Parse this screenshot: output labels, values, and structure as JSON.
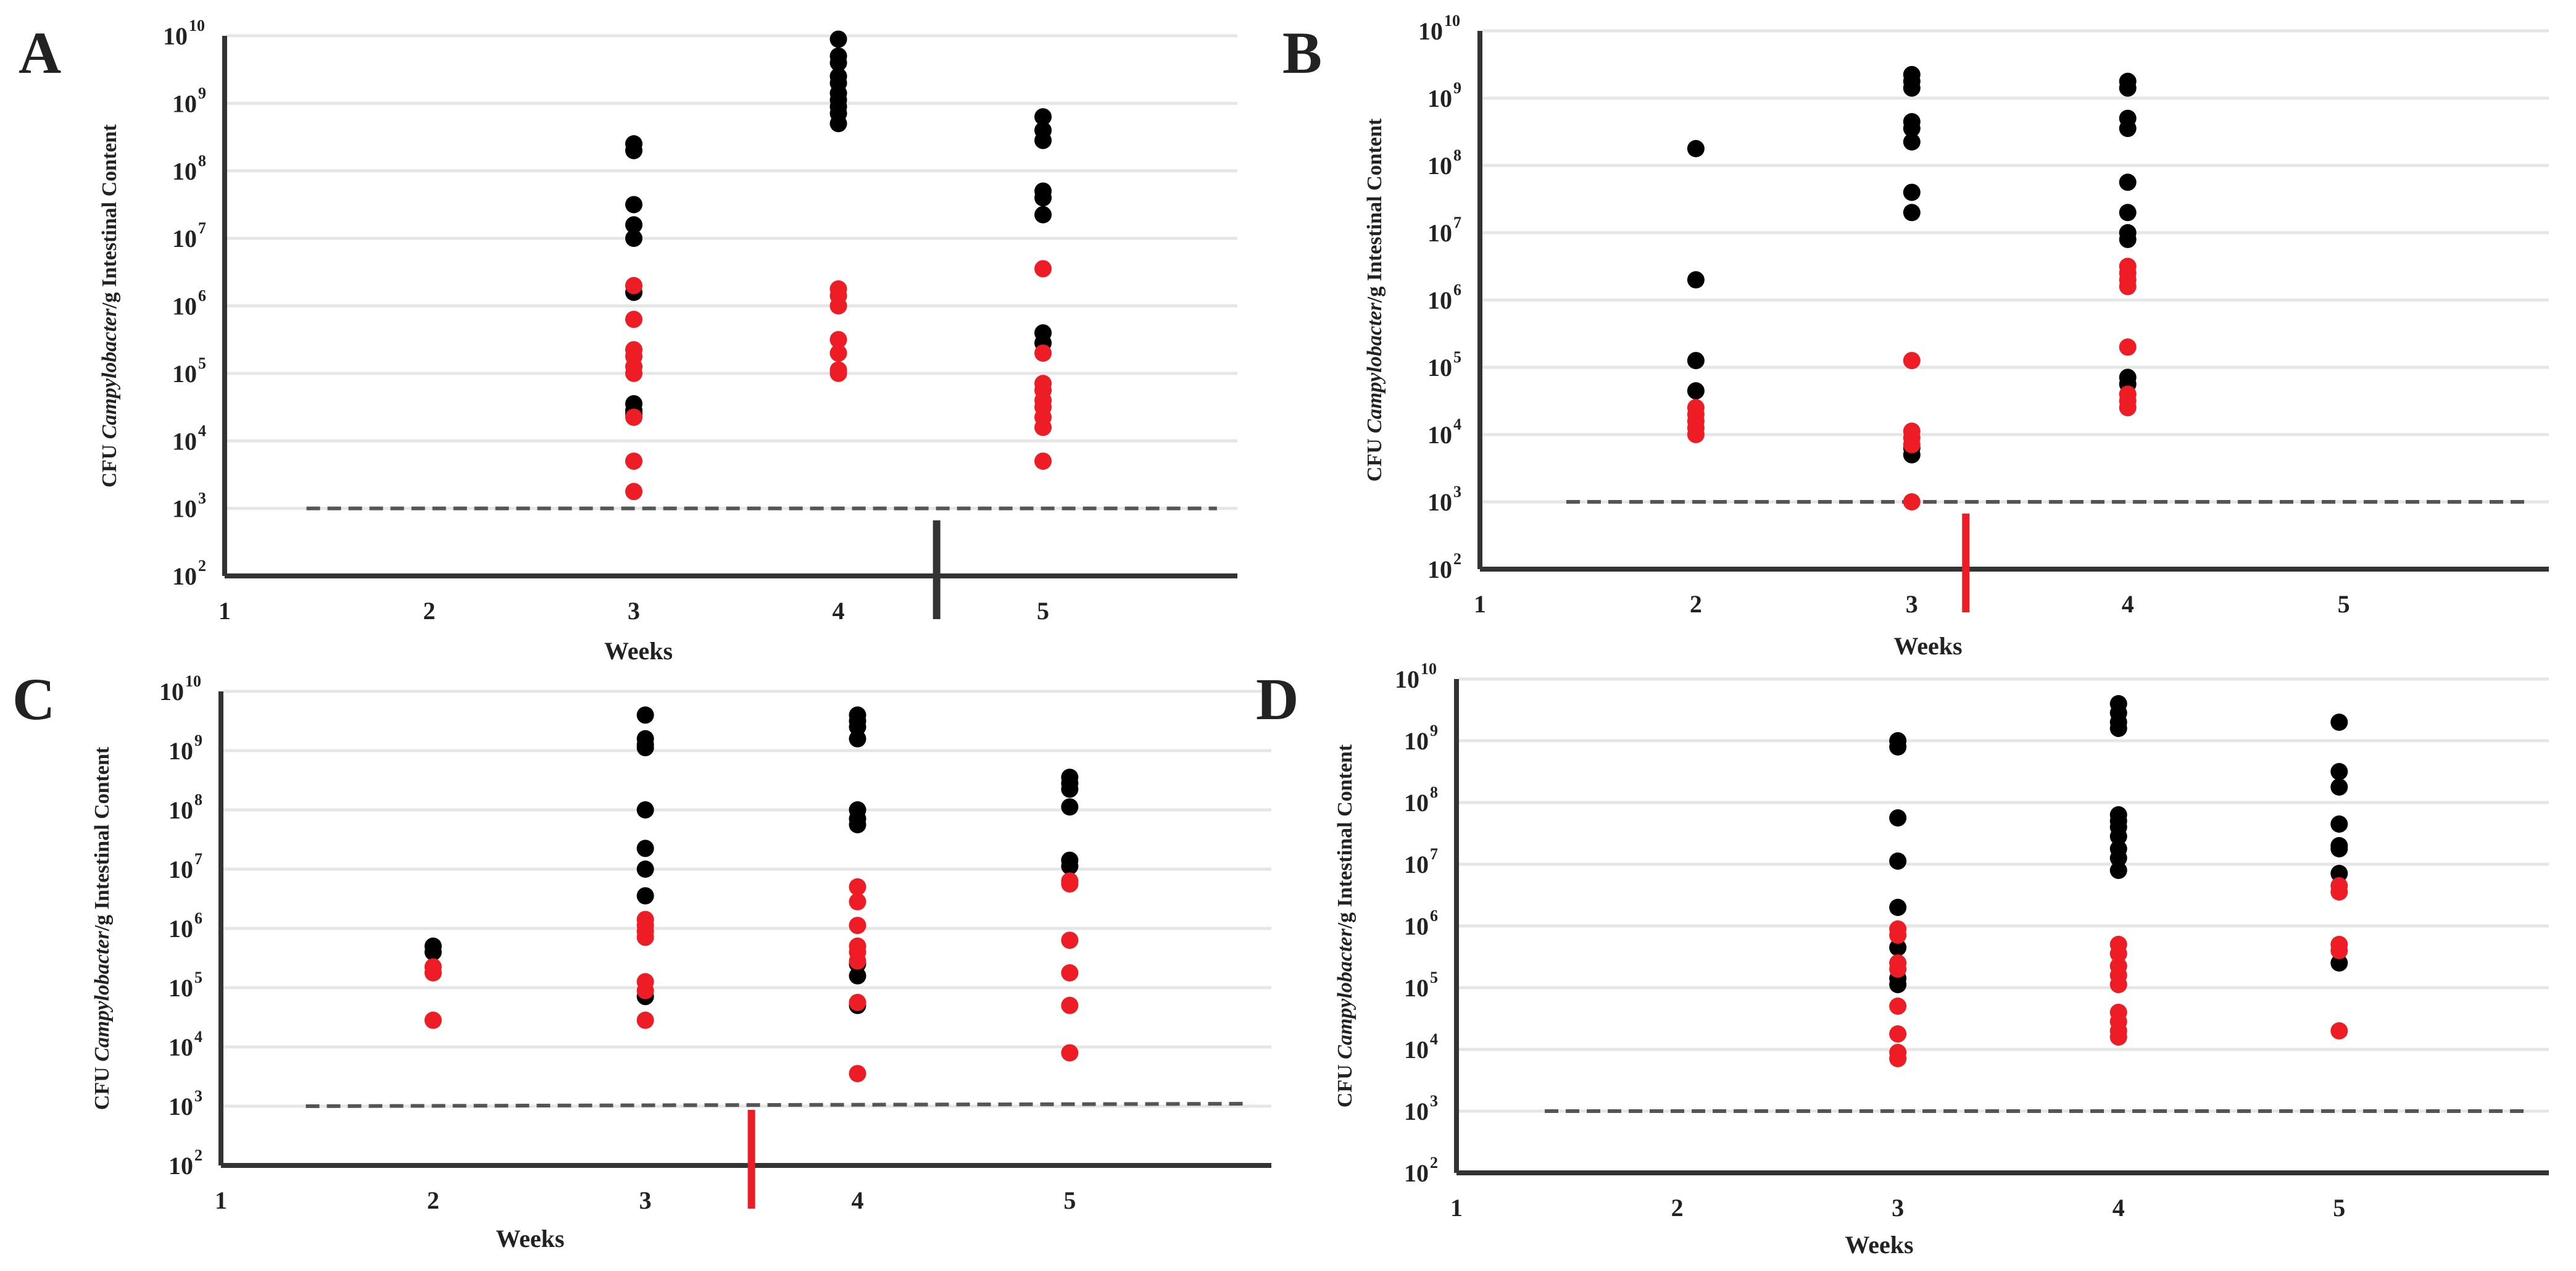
{
  "figure": {
    "panel_letters": [
      "A",
      "B",
      "C",
      "D"
    ]
  },
  "colors": {
    "black_group": "#000000",
    "red_group": "#ee1c25",
    "grid": "#e6e6e6",
    "axis": "#333333",
    "detection_limit": "#555555",
    "marker_black": "#333333",
    "marker_red": "#ee1c25"
  },
  "chart_data": [
    {
      "panel": "A",
      "type": "scatter",
      "xlabel": "Weeks",
      "ylabel": [
        "CFU ",
        "Campylobacter",
        "/g Intestinal Content"
      ],
      "x_ticks": [
        "1",
        "2",
        "3",
        "4",
        "5"
      ],
      "xlim": [
        1,
        5.95
      ],
      "y_ticks": [
        2,
        3,
        4,
        5,
        6,
        7,
        8,
        9,
        10
      ],
      "y_tick_base": "10",
      "ylim_log10": [
        2,
        10
      ],
      "y_scale": "log",
      "detection_limit_log10": 3,
      "marker": {
        "x": 4.48,
        "color": "black"
      },
      "series": [
        {
          "name": "black",
          "color": "#000000",
          "points": [
            [
              3,
              8.4
            ],
            [
              3,
              8.3
            ],
            [
              3,
              7.5
            ],
            [
              3,
              7.2
            ],
            [
              3,
              7.0
            ],
            [
              3,
              6.2
            ],
            [
              3,
              4.55
            ],
            [
              3,
              4.45
            ],
            [
              3,
              4.4
            ],
            [
              4,
              9.95
            ],
            [
              4,
              9.7
            ],
            [
              4,
              9.6
            ],
            [
              4,
              9.4
            ],
            [
              4,
              9.3
            ],
            [
              4,
              9.15
            ],
            [
              4,
              9.05
            ],
            [
              4,
              8.95
            ],
            [
              4,
              8.85
            ],
            [
              4,
              8.7
            ],
            [
              5,
              8.8
            ],
            [
              5,
              8.6
            ],
            [
              5,
              8.45
            ],
            [
              5,
              7.7
            ],
            [
              5,
              7.6
            ],
            [
              5,
              7.35
            ],
            [
              5,
              5.6
            ],
            [
              5,
              5.45
            ]
          ]
        },
        {
          "name": "red",
          "color": "#ee1c25",
          "points": [
            [
              3,
              6.3
            ],
            [
              3,
              5.8
            ],
            [
              3,
              5.35
            ],
            [
              3,
              5.25
            ],
            [
              3,
              5.1
            ],
            [
              3,
              5.0
            ],
            [
              3,
              4.35
            ],
            [
              3,
              3.7
            ],
            [
              3,
              3.25
            ],
            [
              4,
              6.25
            ],
            [
              4,
              6.15
            ],
            [
              4,
              6.0
            ],
            [
              4,
              5.5
            ],
            [
              4,
              5.3
            ],
            [
              4,
              5.05
            ],
            [
              4,
              5.0
            ],
            [
              5,
              6.55
            ],
            [
              5,
              5.3
            ],
            [
              5,
              4.85
            ],
            [
              5,
              4.75
            ],
            [
              5,
              4.6
            ],
            [
              5,
              4.5
            ],
            [
              5,
              4.35
            ],
            [
              5,
              4.2
            ],
            [
              5,
              3.7
            ]
          ]
        }
      ]
    },
    {
      "panel": "B",
      "type": "scatter",
      "xlabel": "Weeks",
      "ylabel": [
        "CFU ",
        "Campylobacter",
        "/g Intestinal Content"
      ],
      "x_ticks": [
        "1",
        "2",
        "3",
        "4",
        "5"
      ],
      "xlim": [
        1,
        5.95
      ],
      "y_ticks": [
        2,
        3,
        4,
        5,
        6,
        7,
        8,
        9,
        10
      ],
      "y_tick_base": "10",
      "ylim_log10": [
        2,
        10
      ],
      "y_scale": "log",
      "detection_limit_log10": 3,
      "marker": {
        "x": 3.25,
        "color": "red"
      },
      "series": [
        {
          "name": "black",
          "color": "#000000",
          "points": [
            [
              2,
              8.25
            ],
            [
              2,
              6.3
            ],
            [
              2,
              5.1
            ],
            [
              2,
              4.65
            ],
            [
              3,
              9.35
            ],
            [
              3,
              9.25
            ],
            [
              3,
              9.15
            ],
            [
              3,
              8.65
            ],
            [
              3,
              8.55
            ],
            [
              3,
              8.35
            ],
            [
              3,
              7.6
            ],
            [
              3,
              7.3
            ],
            [
              3,
              3.8
            ],
            [
              3,
              3.7
            ],
            [
              4,
              9.25
            ],
            [
              4,
              9.15
            ],
            [
              4,
              8.7
            ],
            [
              4,
              8.55
            ],
            [
              4,
              7.75
            ],
            [
              4,
              7.3
            ],
            [
              4,
              7.0
            ],
            [
              4,
              6.9
            ],
            [
              4,
              4.85
            ],
            [
              4,
              4.75
            ]
          ]
        },
        {
          "name": "red",
          "color": "#ee1c25",
          "points": [
            [
              2,
              4.4
            ],
            [
              2,
              4.3
            ],
            [
              2,
              4.2
            ],
            [
              2,
              4.1
            ],
            [
              2,
              4.0
            ],
            [
              3,
              5.1
            ],
            [
              3,
              4.05
            ],
            [
              3,
              3.95
            ],
            [
              3,
              3.85
            ],
            [
              3,
              3.0
            ],
            [
              4,
              6.5
            ],
            [
              4,
              6.4
            ],
            [
              4,
              6.3
            ],
            [
              4,
              6.2
            ],
            [
              4,
              5.3
            ],
            [
              4,
              4.6
            ],
            [
              4,
              4.5
            ],
            [
              4,
              4.4
            ]
          ]
        }
      ]
    },
    {
      "panel": "C",
      "type": "scatter",
      "xlabel": "Weeks",
      "ylabel": [
        "CFU ",
        "Campylobacter",
        "/g Intestinal Content"
      ],
      "x_ticks": [
        "1",
        "2",
        "3",
        "4",
        "5"
      ],
      "xlim": [
        1,
        5.95
      ],
      "y_ticks": [
        2,
        3,
        4,
        5,
        6,
        7,
        8,
        9,
        10
      ],
      "y_tick_base": "10",
      "ylim_log10": [
        2,
        10
      ],
      "y_scale": "log",
      "detection_limit_log10": 3,
      "marker": {
        "x": 3.5,
        "color": "red"
      },
      "series": [
        {
          "name": "black",
          "color": "#000000",
          "points": [
            [
              2,
              5.7
            ],
            [
              2,
              5.6
            ],
            [
              3,
              9.6
            ],
            [
              3,
              9.2
            ],
            [
              3,
              9.1
            ],
            [
              3,
              9.05
            ],
            [
              3,
              8.0
            ],
            [
              3,
              7.35
            ],
            [
              3,
              7.0
            ],
            [
              3,
              6.55
            ],
            [
              3,
              4.85
            ],
            [
              4,
              9.6
            ],
            [
              4,
              9.5
            ],
            [
              4,
              9.4
            ],
            [
              4,
              9.2
            ],
            [
              4,
              8.0
            ],
            [
              4,
              7.85
            ],
            [
              4,
              7.75
            ],
            [
              4,
              5.4
            ],
            [
              4,
              5.2
            ],
            [
              4,
              4.7
            ],
            [
              5,
              8.55
            ],
            [
              5,
              8.45
            ],
            [
              5,
              8.35
            ],
            [
              5,
              8.05
            ],
            [
              5,
              7.15
            ],
            [
              5,
              7.05
            ]
          ]
        },
        {
          "name": "red",
          "color": "#ee1c25",
          "points": [
            [
              2,
              5.35
            ],
            [
              2,
              5.25
            ],
            [
              2,
              4.45
            ],
            [
              3,
              6.15
            ],
            [
              3,
              6.05
            ],
            [
              3,
              5.95
            ],
            [
              3,
              5.85
            ],
            [
              3,
              5.1
            ],
            [
              3,
              4.95
            ],
            [
              3,
              4.45
            ],
            [
              4,
              6.7
            ],
            [
              4,
              6.45
            ],
            [
              4,
              6.05
            ],
            [
              4,
              5.7
            ],
            [
              4,
              5.6
            ],
            [
              4,
              5.45
            ],
            [
              4,
              4.75
            ],
            [
              4,
              3.55
            ],
            [
              5,
              6.8
            ],
            [
              5,
              6.75
            ],
            [
              5,
              5.8
            ],
            [
              5,
              5.25
            ],
            [
              5,
              4.7
            ],
            [
              5,
              3.9
            ]
          ]
        }
      ]
    },
    {
      "panel": "D",
      "type": "scatter",
      "xlabel": "Weeks",
      "ylabel": [
        "CFU ",
        "Campylobacter",
        "/g Intestinal Content"
      ],
      "x_ticks": [
        "1",
        "2",
        "3",
        "4",
        "5"
      ],
      "xlim": [
        1,
        5.95
      ],
      "y_ticks": [
        2,
        3,
        4,
        5,
        6,
        7,
        8,
        9,
        10
      ],
      "y_tick_base": "10",
      "ylim_log10": [
        2,
        10
      ],
      "y_scale": "log",
      "detection_limit_log10": 3,
      "marker": null,
      "series": [
        {
          "name": "black",
          "color": "#000000",
          "points": [
            [
              3,
              9.0
            ],
            [
              3,
              8.9
            ],
            [
              3,
              7.75
            ],
            [
              3,
              7.05
            ],
            [
              3,
              6.3
            ],
            [
              3,
              5.65
            ],
            [
              3,
              5.15
            ],
            [
              3,
              5.05
            ],
            [
              4,
              9.6
            ],
            [
              4,
              9.45
            ],
            [
              4,
              9.3
            ],
            [
              4,
              9.2
            ],
            [
              4,
              7.8
            ],
            [
              4,
              7.7
            ],
            [
              4,
              7.6
            ],
            [
              4,
              7.45
            ],
            [
              4,
              7.25
            ],
            [
              4,
              7.1
            ],
            [
              4,
              6.9
            ],
            [
              5,
              9.3
            ],
            [
              5,
              8.5
            ],
            [
              5,
              8.25
            ],
            [
              5,
              7.65
            ],
            [
              5,
              7.3
            ],
            [
              5,
              7.25
            ],
            [
              5,
              6.85
            ],
            [
              5,
              5.4
            ]
          ]
        },
        {
          "name": "red",
          "color": "#ee1c25",
          "points": [
            [
              3,
              5.95
            ],
            [
              3,
              5.85
            ],
            [
              3,
              5.4
            ],
            [
              3,
              5.3
            ],
            [
              3,
              4.7
            ],
            [
              3,
              4.25
            ],
            [
              3,
              3.95
            ],
            [
              3,
              3.85
            ],
            [
              4,
              5.7
            ],
            [
              4,
              5.55
            ],
            [
              4,
              5.35
            ],
            [
              4,
              5.2
            ],
            [
              4,
              5.05
            ],
            [
              4,
              4.6
            ],
            [
              4,
              4.45
            ],
            [
              4,
              4.3
            ],
            [
              4,
              4.2
            ],
            [
              5,
              6.65
            ],
            [
              5,
              6.55
            ],
            [
              5,
              5.7
            ],
            [
              5,
              5.6
            ],
            [
              5,
              4.3
            ]
          ]
        }
      ]
    }
  ]
}
